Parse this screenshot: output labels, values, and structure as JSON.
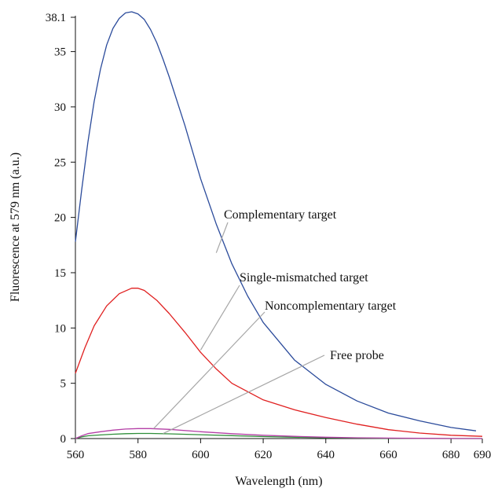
{
  "chart_data": {
    "type": "line",
    "title": "",
    "xlabel": "Wavelength (nm)",
    "ylabel": "Fluorescence at 579 nm (a.u.)",
    "xlim": [
      560,
      690
    ],
    "ylim": [
      0,
      38.1
    ],
    "x_ticks": [
      {
        "value": 560,
        "label": "560"
      },
      {
        "value": 580,
        "label": "580"
      },
      {
        "value": 600,
        "label": "600"
      },
      {
        "value": 620,
        "label": "620"
      },
      {
        "value": 640,
        "label": "640"
      },
      {
        "value": 660,
        "label": "660"
      },
      {
        "value": 680,
        "label": "680"
      },
      {
        "value": 690,
        "label": "690"
      }
    ],
    "y_ticks": [
      {
        "value": 0,
        "label": "0"
      },
      {
        "value": 5,
        "label": "5"
      },
      {
        "value": 10,
        "label": "10"
      },
      {
        "value": 15,
        "label": "15"
      },
      {
        "value": 20,
        "label": "20"
      },
      {
        "value": 25,
        "label": "25"
      },
      {
        "value": 30,
        "label": "30"
      },
      {
        "value": 35,
        "label": "35"
      },
      {
        "value": 38.1,
        "label": "38.1"
      }
    ],
    "grid": false,
    "series": [
      {
        "name": "Complementary target",
        "color": "#2b4b9b",
        "x": [
          560,
          562,
          564,
          566,
          568,
          570,
          572,
          574,
          576,
          578,
          580,
          582,
          584,
          586,
          588,
          590,
          595,
          600,
          605,
          610,
          615,
          620,
          630,
          640,
          650,
          660,
          670,
          680,
          688
        ],
        "y": [
          17.8,
          22.5,
          26.8,
          30.5,
          33.4,
          35.6,
          37.1,
          38.0,
          38.5,
          38.6,
          38.4,
          37.9,
          37.0,
          35.8,
          34.3,
          32.7,
          28.3,
          23.5,
          19.4,
          15.8,
          12.9,
          10.5,
          7.1,
          4.9,
          3.4,
          2.3,
          1.6,
          1.0,
          0.7
        ]
      },
      {
        "name": "Single-mismatched target",
        "color": "#e02020",
        "x": [
          560,
          563,
          566,
          570,
          574,
          578,
          580,
          582,
          586,
          590,
          595,
          600,
          605,
          610,
          620,
          630,
          640,
          650,
          660,
          670,
          680,
          690
        ],
        "y": [
          5.9,
          8.2,
          10.2,
          12.0,
          13.1,
          13.6,
          13.6,
          13.4,
          12.5,
          11.3,
          9.6,
          7.8,
          6.3,
          5.0,
          3.5,
          2.6,
          1.9,
          1.3,
          0.8,
          0.5,
          0.3,
          0.2
        ]
      },
      {
        "name": "Noncomplementary target",
        "color": "#b43fa6",
        "x": [
          560,
          562,
          564,
          568,
          572,
          576,
          580,
          584,
          590,
          600,
          610,
          620,
          630,
          640,
          650,
          660,
          670,
          680,
          690
        ],
        "y": [
          0.0,
          0.25,
          0.45,
          0.62,
          0.76,
          0.86,
          0.9,
          0.9,
          0.83,
          0.62,
          0.44,
          0.3,
          0.2,
          0.12,
          0.07,
          0.04,
          0.02,
          0.01,
          0.0
        ]
      },
      {
        "name": "Free probe",
        "color": "#2f8f3a",
        "x": [
          560,
          562,
          564,
          568,
          572,
          576,
          580,
          584,
          590,
          600,
          610,
          620,
          630,
          640,
          650,
          660,
          670,
          680,
          690
        ],
        "y": [
          0.0,
          0.15,
          0.25,
          0.33,
          0.39,
          0.44,
          0.46,
          0.46,
          0.43,
          0.35,
          0.26,
          0.18,
          0.12,
          0.07,
          0.04,
          0.02,
          0.01,
          0.0,
          0.0
        ]
      }
    ],
    "annotations": [
      {
        "text": "Complementary target",
        "series": 0,
        "x": 605,
        "y": 16.8
      },
      {
        "text": "Single-mismatched target",
        "series": 1,
        "x": 600,
        "y": 8.0
      },
      {
        "text": "Noncomplementary target",
        "series": 2,
        "x": 585,
        "y": 0.9
      },
      {
        "text": "Free probe",
        "series": 3,
        "x": 588,
        "y": 0.45
      }
    ]
  }
}
